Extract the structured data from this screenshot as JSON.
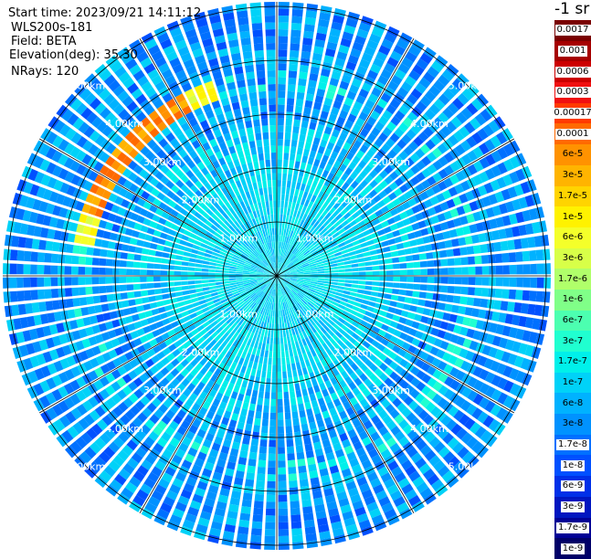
{
  "info": {
    "start_time": "Start time: 2023/09/21 14:11:12",
    "device": "WLS200s-181",
    "field": "Field: BETA",
    "elevation": "Elevation(deg): 35.30",
    "nrays": "NRays: 120"
  },
  "colorbar": {
    "unit": "-1 sr",
    "levels": [
      {
        "label": "0.0017",
        "color": "#7a0000"
      },
      {
        "label": "0.001",
        "color": "#a60000"
      },
      {
        "label": "0.0006",
        "color": "#cc0000"
      },
      {
        "label": "0.0003",
        "color": "#f01010"
      },
      {
        "label": "0.00017",
        "color": "#ff3a00"
      },
      {
        "label": "0.0001",
        "color": "#ff6a00"
      },
      {
        "label": "6e-5",
        "color": "#ff9200"
      },
      {
        "label": "3e-5",
        "color": "#ffb400"
      },
      {
        "label": "1.7e-5",
        "color": "#ffd400"
      },
      {
        "label": "1e-5",
        "color": "#fff200"
      },
      {
        "label": "6e-6",
        "color": "#f4ff2a"
      },
      {
        "label": "3e-6",
        "color": "#d8ff48"
      },
      {
        "label": "1.7e-6",
        "color": "#b0ff6a"
      },
      {
        "label": "1e-6",
        "color": "#80ff88"
      },
      {
        "label": "6e-7",
        "color": "#4cffb0"
      },
      {
        "label": "3e-7",
        "color": "#20ffd0"
      },
      {
        "label": "1.7e-7",
        "color": "#00f0ea"
      },
      {
        "label": "1e-7",
        "color": "#00d2f8"
      },
      {
        "label": "6e-8",
        "color": "#00b2ff"
      },
      {
        "label": "3e-8",
        "color": "#0092ff"
      },
      {
        "label": "1.7e-8",
        "color": "#0070ff"
      },
      {
        "label": "1e-8",
        "color": "#0050ff"
      },
      {
        "label": "6e-9",
        "color": "#0030e8"
      },
      {
        "label": "3e-9",
        "color": "#0016c0"
      },
      {
        "label": "1.7e-9",
        "color": "#000096"
      },
      {
        "label": "1e-9",
        "color": "#000068"
      }
    ]
  },
  "range_rings": [
    {
      "label": "1.00km"
    },
    {
      "label": "2.00km"
    },
    {
      "label": "3.00km"
    },
    {
      "label": "4.00km"
    },
    {
      "label": "5.00km"
    }
  ],
  "colors": {
    "grid": "#000000",
    "ray_separator": "#ffffff",
    "ring_label": "#ffffff"
  }
}
